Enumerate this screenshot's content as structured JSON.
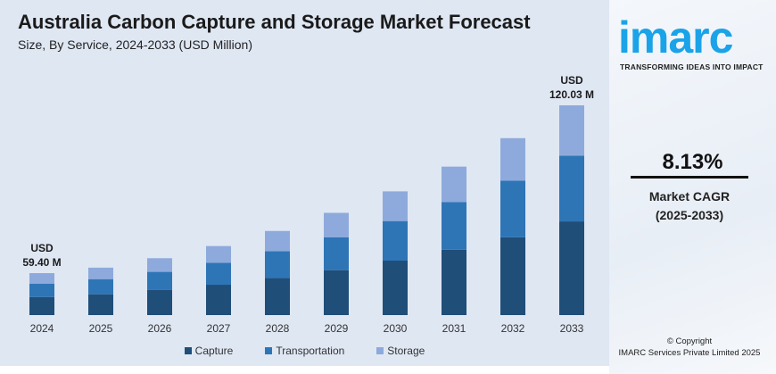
{
  "chart_data": {
    "type": "bar",
    "stacked": true,
    "title": "Australia Carbon Capture and Storage Market Forecast",
    "subtitle": "Size, By Service, 2024-2033 (USD Million)",
    "categories": [
      "2024",
      "2025",
      "2026",
      "2027",
      "2028",
      "2029",
      "2030",
      "2031",
      "2032",
      "2033"
    ],
    "series": [
      {
        "name": "Capture",
        "color": "#1f4e79",
        "values": [
          25.6,
          28.2,
          30.6,
          33.0,
          35.7,
          38.6,
          41.8,
          45.2,
          48.8,
          53.6
        ]
      },
      {
        "name": "Transportation",
        "color": "#2e75b6",
        "values": [
          19.0,
          20.5,
          22.2,
          24.0,
          26.0,
          28.1,
          30.4,
          32.9,
          35.5,
          37.6
        ]
      },
      {
        "name": "Storage",
        "color": "#8eaadc",
        "values": [
          14.8,
          15.5,
          16.7,
          18.1,
          19.5,
          21.1,
          22.8,
          24.6,
          26.7,
          28.83
        ]
      }
    ],
    "annotations": [
      {
        "category": "2024",
        "line1": "USD",
        "line2": "59.40 M"
      },
      {
        "category": "2033",
        "line1": "USD",
        "line2": "120.03 M"
      }
    ],
    "grid": false,
    "legend": "bottom",
    "y_axis_visible": false
  },
  "side": {
    "logo": "imarc",
    "tagline": "TRANSFORMING IDEAS INTO IMPACT",
    "cagr_value": "8.13%",
    "cagr_label": "Market CAGR",
    "cagr_period": "(2025-2033)",
    "copyright": "© Copyright",
    "company": "IMARC Services Private Limited 2025"
  }
}
